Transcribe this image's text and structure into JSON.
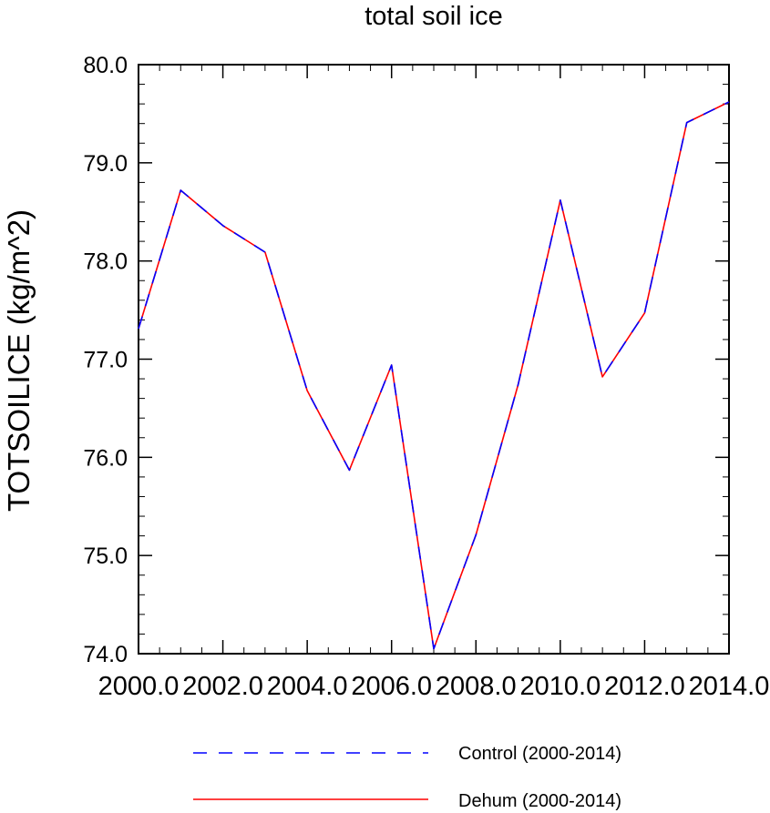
{
  "chart_data": {
    "type": "line",
    "title": "total soil ice",
    "xlabel": "",
    "ylabel": "TOTSOILICE  (kg/m^2)",
    "xlim": [
      2000,
      2014
    ],
    "ylim": [
      74,
      80
    ],
    "x_ticks": [
      2000,
      2002,
      2004,
      2006,
      2008,
      2010,
      2012,
      2014
    ],
    "x_tick_labels": [
      "2000.0",
      "2002.0",
      "2004.0",
      "2006.0",
      "2008.0",
      "2010.0",
      "2012.0",
      "2014.0"
    ],
    "y_ticks": [
      74,
      75,
      76,
      77,
      78,
      79,
      80
    ],
    "y_tick_labels": [
      "74.0",
      "75.0",
      "76.0",
      "77.0",
      "78.0",
      "79.0",
      "80.0"
    ],
    "grid": false,
    "legend_position": "bottom",
    "x": [
      2000,
      2001,
      2002,
      2003,
      2004,
      2005,
      2006,
      2007,
      2008,
      2009,
      2010,
      2011,
      2012,
      2013,
      2014
    ],
    "series": [
      {
        "name": "Control (2000-2014)",
        "color": "#0000ff",
        "style": "dashed",
        "values": [
          77.31,
          78.72,
          78.36,
          78.09,
          76.68,
          75.87,
          76.94,
          74.05,
          75.21,
          76.74,
          78.62,
          76.82,
          77.47,
          79.41,
          79.62
        ]
      },
      {
        "name": "Dehum (2000-2014)",
        "color": "#ff0000",
        "style": "solid",
        "values": [
          77.31,
          78.72,
          78.36,
          78.09,
          76.68,
          75.87,
          76.94,
          74.05,
          75.21,
          76.74,
          78.62,
          76.82,
          77.47,
          79.41,
          79.62
        ]
      }
    ]
  }
}
